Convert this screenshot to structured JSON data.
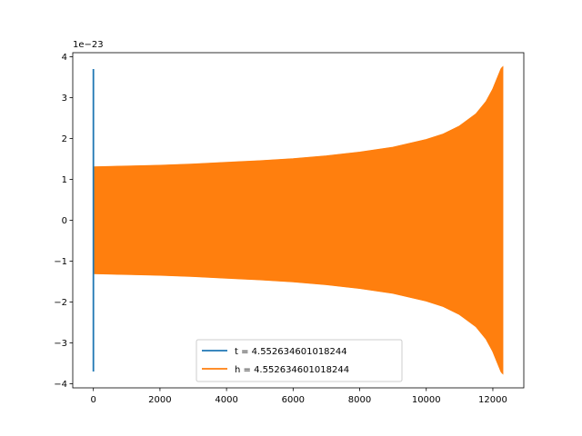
{
  "chart_data": {
    "type": "line",
    "title": "",
    "xlabel": "",
    "ylabel": "",
    "offset_label": "1e−23",
    "xlim": [
      -620,
      12930
    ],
    "ylim": [
      -4.1,
      4.1
    ],
    "x_ticks": [
      0,
      2000,
      4000,
      6000,
      8000,
      10000,
      12000
    ],
    "x_tick_labels": [
      "0",
      "2000",
      "4000",
      "6000",
      "8000",
      "10000",
      "12000"
    ],
    "y_ticks": [
      4,
      3,
      2,
      1,
      0,
      -1,
      -2,
      -3,
      -4
    ],
    "y_tick_labels": [
      "4",
      "3",
      "2",
      "1",
      "0",
      "−1",
      "−2",
      "−3",
      "−4"
    ],
    "grid": false,
    "legend_position": "lower center",
    "series": [
      {
        "name": "t = 4.552634601018244",
        "color": "#1f77b4",
        "description_points": [
          {
            "x": 0,
            "y": 3.7
          },
          {
            "x": 0,
            "y": -3.7
          }
        ]
      },
      {
        "name": "h = 4.552634601018244",
        "color": "#ff7f0e",
        "envelope": {
          "x": [
            0,
            1000,
            2000,
            3000,
            4000,
            5000,
            6000,
            7000,
            8000,
            9000,
            10000,
            10500,
            11000,
            11500,
            11800,
            12000,
            12150,
            12250,
            12300
          ],
          "upper": [
            1.3,
            1.32,
            1.34,
            1.37,
            1.41,
            1.45,
            1.5,
            1.57,
            1.66,
            1.78,
            1.97,
            2.1,
            2.3,
            2.6,
            2.9,
            3.2,
            3.5,
            3.7,
            3.75
          ],
          "lower": [
            -1.3,
            -1.32,
            -1.34,
            -1.37,
            -1.41,
            -1.45,
            -1.5,
            -1.57,
            -1.66,
            -1.78,
            -1.97,
            -2.1,
            -2.3,
            -2.6,
            -2.9,
            -3.2,
            -3.5,
            -3.7,
            -3.75
          ]
        }
      }
    ]
  }
}
